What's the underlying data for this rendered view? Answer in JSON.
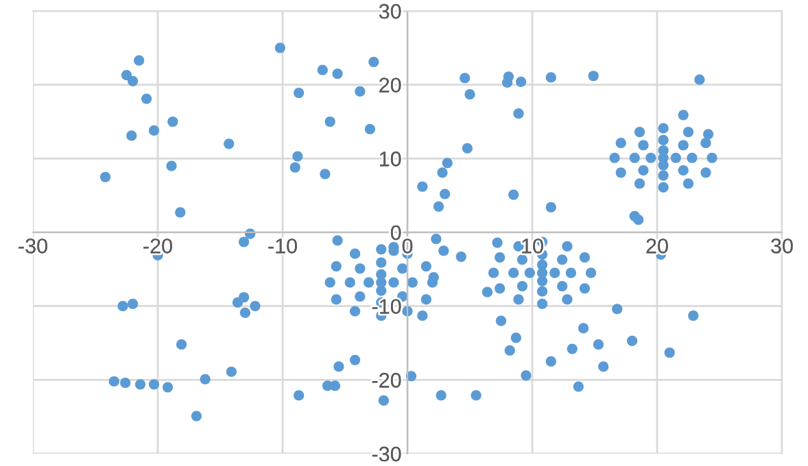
{
  "chart_data": {
    "type": "scatter",
    "color": "#5b9bd5",
    "marker": "circle",
    "grid": true,
    "xlim": [
      -30,
      30
    ],
    "ylim": [
      -30,
      30
    ],
    "xticks": [
      -30,
      -20,
      -10,
      0,
      10,
      20,
      30
    ],
    "yticks": [
      -30,
      -20,
      -10,
      0,
      10,
      20,
      30
    ],
    "x": [
      -24.2,
      -21.5,
      -22.5,
      -22.0,
      -20.9,
      -22.1,
      -20.3,
      -18.8,
      -18.9,
      -18.2,
      -14.3,
      -10.2,
      -6.8,
      -5.6,
      -8.7,
      -2.7,
      -3.8,
      -6.2,
      -3.0,
      -8.8,
      -9.0,
      -6.6,
      -12.6,
      4.6,
      5.0,
      8.1,
      8.0,
      9.1,
      11.5,
      14.9,
      23.4,
      22.1,
      24.1,
      8.9,
      4.8,
      3.2,
      2.8,
      1.2,
      3.0,
      2.5,
      8.5,
      11.5,
      18.2,
      18.5,
      -13.1,
      -20.0,
      -5.6,
      -1.1,
      -1.1,
      -22.8,
      -22.0,
      -13.6,
      -13.1,
      -13.0,
      -12.2,
      -18.1,
      -23.5,
      -22.6,
      -21.4,
      -20.3,
      -19.2,
      -16.2,
      -14.1,
      -16.9,
      -8.7,
      -6.4,
      -5.8,
      -5.5,
      -4.2,
      -1.9,
      0.3,
      2.3,
      2.9,
      4.3,
      7.2,
      2.1,
      1.2,
      6.4,
      7.5,
      8.7,
      8.2,
      9.5,
      11.5,
      13.2,
      14.1,
      15.3,
      15.7,
      13.7,
      16.8,
      18.0,
      21.0,
      22.9,
      2.7,
      5.5,
      20.3,
      24.4,
      23.9,
      22.5,
      20.5,
      18.6,
      17.1,
      16.6,
      17.1,
      18.6,
      20.5,
      22.5,
      23.9,
      22.8,
      22.1,
      20.5,
      18.9,
      18.2,
      18.9,
      20.5,
      22.1,
      21.5,
      20.5,
      19.5,
      20.5,
      20.5,
      2.0,
      1.5,
      0.0,
      -2.1,
      -4.2,
      -5.7,
      -6.2,
      -5.7,
      -4.2,
      -2.1,
      0.0,
      1.5,
      0.4,
      -0.4,
      -2.1,
      -3.8,
      -4.6,
      -3.8,
      -2.1,
      -0.4,
      -1.1,
      -2.1,
      -3.1,
      -2.1,
      -2.1,
      14.7,
      14.2,
      12.8,
      10.8,
      8.9,
      7.4,
      6.9,
      7.4,
      8.9,
      10.8,
      12.8,
      14.2,
      13.1,
      12.4,
      10.8,
      9.2,
      8.5,
      9.2,
      10.8,
      12.4,
      11.8,
      10.8,
      9.8,
      10.8,
      10.8
    ],
    "values": [
      7.5,
      23.3,
      21.3,
      20.5,
      18.1,
      13.1,
      13.8,
      15.0,
      9.0,
      2.7,
      12.0,
      25.0,
      22.0,
      21.5,
      18.9,
      23.1,
      19.1,
      15.0,
      14.0,
      10.3,
      8.8,
      7.9,
      -0.2,
      20.9,
      18.7,
      21.1,
      20.3,
      20.4,
      21.0,
      21.2,
      20.7,
      15.9,
      13.3,
      16.1,
      11.4,
      9.4,
      8.1,
      6.2,
      5.2,
      3.5,
      5.1,
      3.4,
      2.2,
      1.7,
      -1.3,
      -3.1,
      -1.1,
      -2.0,
      -2.5,
      -10.0,
      -9.7,
      -9.5,
      -8.8,
      -10.9,
      -10.0,
      -15.2,
      -20.2,
      -20.4,
      -20.6,
      -20.6,
      -21.0,
      -19.9,
      -18.9,
      -24.9,
      -22.1,
      -20.8,
      -20.8,
      -18.2,
      -17.3,
      -22.8,
      -19.5,
      -0.9,
      -2.5,
      -3.3,
      -1.4,
      -6.1,
      -11.3,
      -8.1,
      -12.0,
      -14.3,
      -16.0,
      -19.4,
      -17.5,
      -15.8,
      -13.0,
      -15.2,
      -18.2,
      -20.9,
      -10.4,
      -14.7,
      -16.3,
      -11.3,
      -22.1,
      -22.1,
      -3.0,
      10.1,
      12.1,
      13.6,
      14.1,
      13.6,
      12.1,
      10.1,
      8.1,
      6.6,
      6.1,
      6.6,
      8.1,
      10.1,
      11.8,
      12.5,
      11.8,
      10.1,
      8.4,
      7.7,
      8.4,
      10.1,
      11.1,
      10.1,
      9.1,
      10.1,
      -6.8,
      -4.6,
      -2.9,
      -2.3,
      -2.9,
      -4.6,
      -6.8,
      -9.1,
      -10.7,
      -11.3,
      -10.7,
      -9.1,
      -6.8,
      -4.9,
      -4.1,
      -4.9,
      -6.8,
      -8.7,
      -9.5,
      -8.7,
      -6.8,
      -5.7,
      -6.8,
      -7.9,
      -6.8,
      -5.5,
      -3.4,
      -1.9,
      -1.3,
      -1.9,
      -3.4,
      -5.5,
      -7.6,
      -9.1,
      -9.7,
      -9.1,
      -7.6,
      -5.5,
      -3.7,
      -3.0,
      -3.7,
      -5.5,
      -7.3,
      -8.0,
      -7.3,
      -5.5,
      -4.4,
      -5.5,
      -6.6,
      -5.5
    ]
  }
}
